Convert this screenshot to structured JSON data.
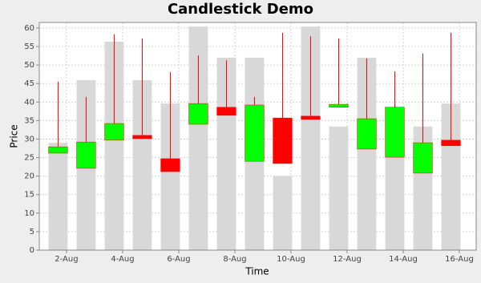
{
  "chart_data": {
    "type": "candlestick",
    "title": "Candlestick Demo",
    "x_label": "Time",
    "y_label": "Price",
    "x": [
      1.7,
      2.7,
      3.7,
      4.7,
      5.7,
      6.7,
      7.7,
      8.7,
      9.7,
      10.7,
      11.7,
      12.7,
      13.7,
      14.7,
      15.7
    ],
    "series": [
      {
        "open": [
          26.2,
          22.1,
          29.7,
          31.0,
          24.7,
          34.0,
          38.6,
          24.0,
          35.7,
          36.2,
          38.6,
          27.3,
          25.1,
          20.8,
          29.7
        ],
        "high": [
          45.5,
          41.4,
          58.3,
          57.2,
          48.1,
          52.6,
          51.3,
          41.4,
          58.7,
          57.8,
          57.2,
          51.8,
          48.3,
          53.1,
          58.7
        ],
        "low": [
          26.2,
          22.1,
          29.7,
          30.1,
          21.2,
          34.0,
          36.4,
          24.0,
          23.4,
          35.3,
          38.6,
          27.3,
          25.1,
          20.8,
          28.2
        ],
        "close": [
          27.9,
          29.2,
          34.2,
          30.1,
          21.2,
          39.6,
          36.4,
          39.2,
          23.4,
          35.3,
          39.4,
          35.5,
          38.6,
          29.0,
          28.2
        ],
        "volume": [
          29.0,
          45.9,
          56.3,
          45.9,
          39.6,
          60.4,
          52.0,
          52.0,
          20.0,
          60.4,
          33.4,
          52.0,
          25.0,
          33.4,
          39.6
        ]
      }
    ],
    "up_color": "#00ff00",
    "down_color": "#ff0000",
    "wick_color": "#ff0000",
    "volume_color": "#d8d8d8",
    "xlim": [
      1.03,
      16.6
    ],
    "xticks": [
      {
        "value": 2,
        "label": "2-Aug"
      },
      {
        "value": 4,
        "label": "4-Aug"
      },
      {
        "value": 6,
        "label": "6-Aug"
      },
      {
        "value": 8,
        "label": "8-Aug"
      },
      {
        "value": 10,
        "label": "10-Aug"
      },
      {
        "value": 12,
        "label": "12-Aug"
      },
      {
        "value": 14,
        "label": "14-Aug"
      },
      {
        "value": 16,
        "label": "16-Aug"
      }
    ],
    "ylim": [
      0,
      61.5
    ],
    "yticks": [
      0,
      5,
      10,
      15,
      20,
      25,
      30,
      35,
      40,
      45,
      50,
      55,
      60
    ],
    "grid": true
  }
}
